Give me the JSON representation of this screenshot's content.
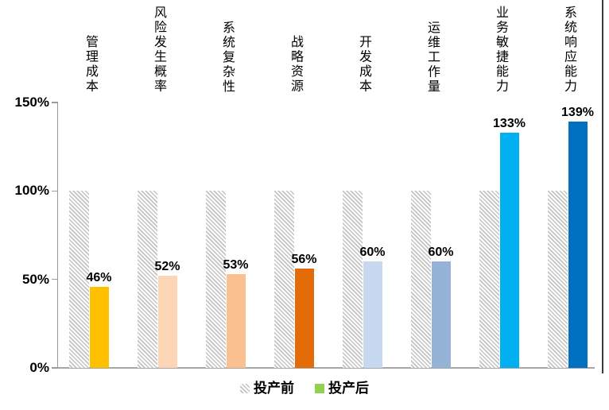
{
  "chart_data": {
    "type": "bar",
    "title": "",
    "categories": [
      "管理成本",
      "风险发生概率",
      "系统复杂性",
      "战略资源",
      "开发成本",
      "运维工作量",
      "业务敏捷能力",
      "系统响应能力"
    ],
    "series": [
      {
        "name": "投产前",
        "values": [
          100,
          100,
          100,
          100,
          100,
          100,
          100,
          100
        ],
        "style": "hatched-gray",
        "hatch_line_color": "#c3c3c3"
      },
      {
        "name": "投产后",
        "values": [
          46,
          52,
          53,
          56,
          60,
          60,
          133,
          139
        ],
        "colors": [
          "#FFC000",
          "#FCD5B4",
          "#FAC090",
          "#E36C09",
          "#C6D9F1",
          "#95B3D7",
          "#00B0F0",
          "#0070C0"
        ]
      }
    ],
    "data_labels": [
      "46%",
      "52%",
      "53%",
      "56%",
      "60%",
      "60%",
      "133%",
      "139%"
    ],
    "y_ticks": [
      {
        "label": "0%",
        "value": 0
      },
      {
        "label": "50%",
        "value": 50
      },
      {
        "label": "100%",
        "value": 100
      },
      {
        "label": "150%",
        "value": 150
      }
    ],
    "ylim": [
      0,
      150
    ],
    "grid": false,
    "legend_position": "bottom"
  },
  "legend": {
    "before_swatch": "hatched-gray",
    "after_swatch_color": "#92D050"
  }
}
